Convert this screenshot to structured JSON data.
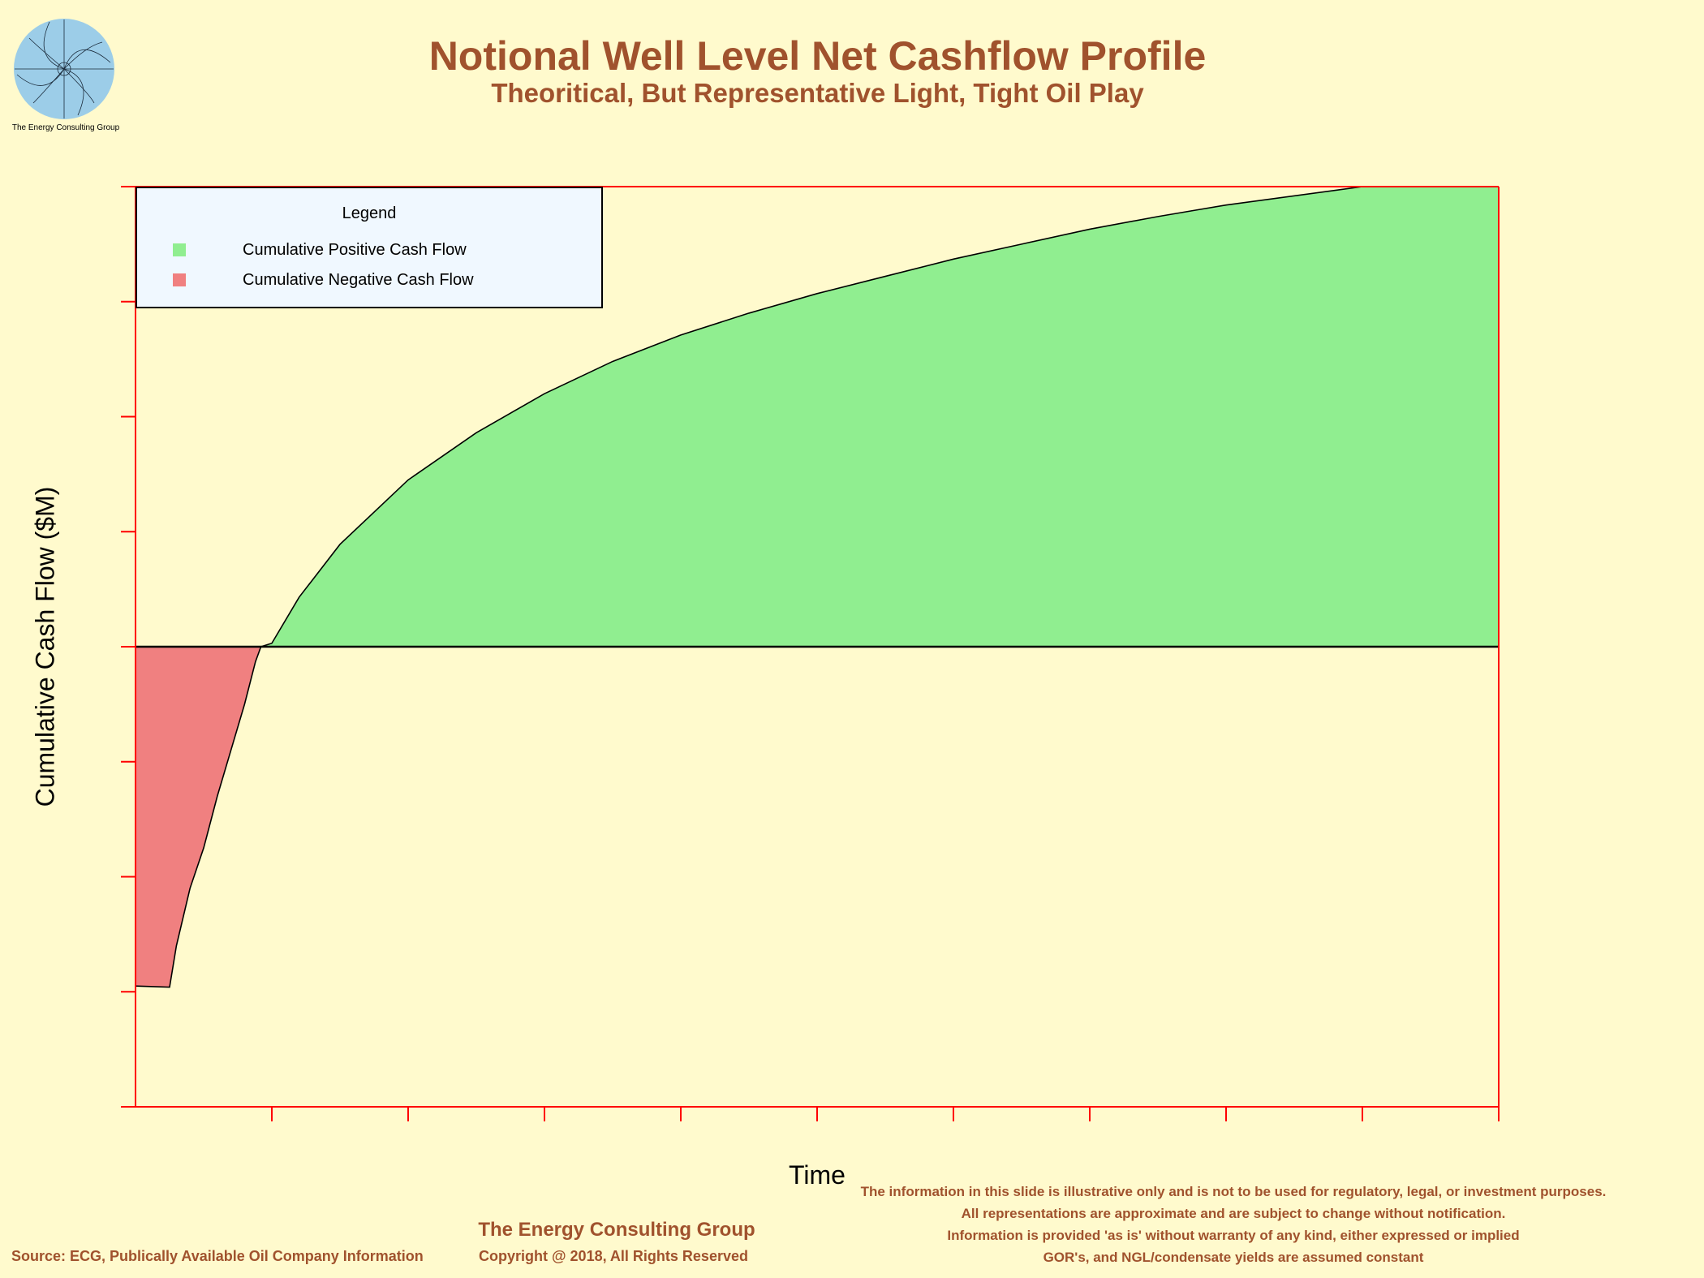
{
  "logo": {
    "caption": "The Energy Consulting Group"
  },
  "chart_data": {
    "type": "area",
    "title": "Notional Well Level Net Cashflow Profile",
    "subtitle": "Theoritical, But Representative Light, Tight Oil Play",
    "xlabel": "Time",
    "ylabel": "Cumulative Cash Flow ($M)",
    "x_ticks": 10,
    "y_ticks": 8,
    "xlim": [
      0,
      10
    ],
    "ylim": [
      -4,
      4
    ],
    "grid": false,
    "legend": {
      "title": "Legend",
      "placement": "top-left",
      "entries": [
        "Cumulative Positive Cash Flow",
        "Cumulative Negative Cash Flow"
      ]
    },
    "colors": {
      "positive": "#90EE90",
      "negative": "#F08080",
      "axes": "#FF0000"
    },
    "series": [
      {
        "name": "Cumulative Positive Cash Flow",
        "x": [
          0.92,
          1.0,
          1.2,
          1.5,
          2.0,
          2.5,
          3.0,
          3.5,
          4.0,
          4.5,
          5.0,
          5.5,
          6.0,
          6.5,
          7.0,
          7.5,
          7.75,
          8.0,
          9.0,
          10.0
        ],
        "y": [
          0.0,
          0.03,
          0.43,
          0.89,
          1.45,
          1.86,
          2.2,
          2.48,
          2.71,
          2.9,
          3.07,
          3.22,
          3.37,
          3.5,
          3.63,
          3.74,
          3.79,
          3.84,
          4.0,
          4.0
        ]
      },
      {
        "name": "Cumulative Negative Cash Flow",
        "x": [
          0.0,
          0.25,
          0.3,
          0.4,
          0.5,
          0.6,
          0.7,
          0.8,
          0.88,
          0.92
        ],
        "y": [
          -2.95,
          -2.96,
          -2.6,
          -2.1,
          -1.75,
          -1.3,
          -0.9,
          -0.5,
          -0.13,
          0.0
        ]
      }
    ]
  },
  "footer": {
    "company": "The Energy Consulting Group",
    "copyright": "Copyright @ 2018, All Rights Reserved",
    "source": "Source: ECG, Publically Available Oil Company Information",
    "disclaimer": [
      "The information in this slide is illustrative only and is not to be used for regulatory, legal, or investment purposes.",
      "All representations are approximate and are subject to change without notification.",
      "Information is provided 'as is' without warranty of any kind, either expressed or implied",
      "GOR's, and NGL/condensate yields are assumed constant"
    ]
  }
}
